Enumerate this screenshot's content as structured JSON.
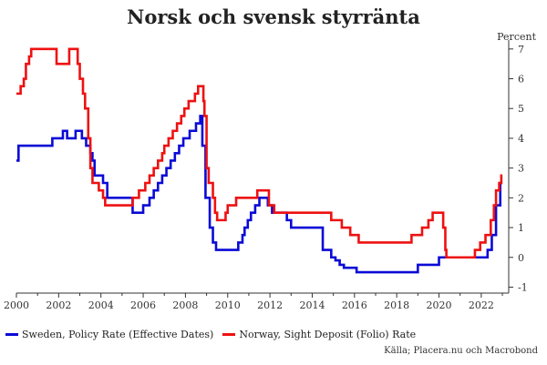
{
  "chart_data": {
    "type": "line",
    "title": "Norsk och svensk styrränta",
    "ylabel": "Percent",
    "xlabel": "",
    "source": "Källa; Placera.nu och Macrobond",
    "xlim": [
      2000,
      2023.3
    ],
    "ylim": [
      -1.2,
      7.3
    ],
    "x_ticks": [
      2000,
      2002,
      2004,
      2006,
      2008,
      2010,
      2012,
      2014,
      2016,
      2018,
      2020,
      2022
    ],
    "y_ticks": [
      -1,
      0,
      1,
      2,
      3,
      4,
      5,
      6,
      7
    ],
    "y_axis_position": "right",
    "grid": false,
    "legend_position": "bottom",
    "series": [
      {
        "name": "Sweden, Policy Rate (Effective Dates)",
        "color": "#0a0ad6",
        "step": true,
        "points": [
          [
            2000.0,
            3.25
          ],
          [
            2000.1,
            3.75
          ],
          [
            2001.7,
            4.0
          ],
          [
            2002.2,
            4.25
          ],
          [
            2002.4,
            4.0
          ],
          [
            2002.8,
            4.25
          ],
          [
            2002.9,
            4.25
          ],
          [
            2003.0,
            4.25
          ],
          [
            2003.1,
            4.0
          ],
          [
            2003.3,
            3.75
          ],
          [
            2003.5,
            3.5
          ],
          [
            2003.6,
            3.25
          ],
          [
            2003.7,
            2.75
          ],
          [
            2004.1,
            2.5
          ],
          [
            2004.3,
            2.0
          ],
          [
            2005.5,
            1.5
          ],
          [
            2006.0,
            1.75
          ],
          [
            2006.3,
            2.0
          ],
          [
            2006.5,
            2.25
          ],
          [
            2006.7,
            2.5
          ],
          [
            2006.9,
            2.75
          ],
          [
            2007.1,
            3.0
          ],
          [
            2007.3,
            3.25
          ],
          [
            2007.5,
            3.5
          ],
          [
            2007.7,
            3.75
          ],
          [
            2007.9,
            4.0
          ],
          [
            2008.2,
            4.25
          ],
          [
            2008.5,
            4.5
          ],
          [
            2008.7,
            4.75
          ],
          [
            2008.8,
            3.75
          ],
          [
            2008.95,
            2.0
          ],
          [
            2009.15,
            1.0
          ],
          [
            2009.3,
            0.5
          ],
          [
            2009.45,
            0.25
          ],
          [
            2010.5,
            0.5
          ],
          [
            2010.7,
            0.75
          ],
          [
            2010.8,
            1.0
          ],
          [
            2010.95,
            1.25
          ],
          [
            2011.1,
            1.5
          ],
          [
            2011.3,
            1.75
          ],
          [
            2011.5,
            2.0
          ],
          [
            2011.9,
            1.75
          ],
          [
            2012.1,
            1.5
          ],
          [
            2012.8,
            1.25
          ],
          [
            2013.0,
            1.0
          ],
          [
            2014.5,
            0.25
          ],
          [
            2014.9,
            0.0
          ],
          [
            2015.1,
            -0.1
          ],
          [
            2015.3,
            -0.25
          ],
          [
            2015.5,
            -0.35
          ],
          [
            2016.1,
            -0.5
          ],
          [
            2019.0,
            -0.25
          ],
          [
            2020.0,
            0.0
          ],
          [
            2022.3,
            0.25
          ],
          [
            2022.5,
            0.75
          ],
          [
            2022.7,
            1.75
          ],
          [
            2022.9,
            2.5
          ],
          [
            2023.0,
            2.5
          ]
        ]
      },
      {
        "name": "Norway, Sight Deposit (Folio) Rate",
        "color": "#ee1111",
        "step": true,
        "points": [
          [
            2000.0,
            5.5
          ],
          [
            2000.2,
            5.75
          ],
          [
            2000.35,
            6.0
          ],
          [
            2000.45,
            6.5
          ],
          [
            2000.6,
            6.75
          ],
          [
            2000.7,
            7.0
          ],
          [
            2001.9,
            6.5
          ],
          [
            2002.5,
            7.0
          ],
          [
            2002.9,
            6.5
          ],
          [
            2003.0,
            6.0
          ],
          [
            2003.15,
            5.5
          ],
          [
            2003.25,
            5.0
          ],
          [
            2003.4,
            4.0
          ],
          [
            2003.5,
            3.0
          ],
          [
            2003.6,
            2.5
          ],
          [
            2003.9,
            2.25
          ],
          [
            2004.1,
            2.0
          ],
          [
            2004.2,
            1.75
          ],
          [
            2005.5,
            2.0
          ],
          [
            2005.8,
            2.25
          ],
          [
            2006.1,
            2.5
          ],
          [
            2006.3,
            2.75
          ],
          [
            2006.5,
            3.0
          ],
          [
            2006.7,
            3.25
          ],
          [
            2006.9,
            3.5
          ],
          [
            2007.0,
            3.75
          ],
          [
            2007.2,
            4.0
          ],
          [
            2007.4,
            4.25
          ],
          [
            2007.6,
            4.5
          ],
          [
            2007.8,
            4.75
          ],
          [
            2007.95,
            5.0
          ],
          [
            2008.15,
            5.25
          ],
          [
            2008.45,
            5.5
          ],
          [
            2008.6,
            5.75
          ],
          [
            2008.85,
            5.25
          ],
          [
            2008.9,
            4.75
          ],
          [
            2009.0,
            3.0
          ],
          [
            2009.1,
            2.5
          ],
          [
            2009.3,
            2.0
          ],
          [
            2009.4,
            1.5
          ],
          [
            2009.5,
            1.25
          ],
          [
            2009.9,
            1.5
          ],
          [
            2010.0,
            1.75
          ],
          [
            2010.4,
            2.0
          ],
          [
            2011.4,
            2.25
          ],
          [
            2011.95,
            1.75
          ],
          [
            2012.2,
            1.5
          ],
          [
            2014.9,
            1.25
          ],
          [
            2015.4,
            1.0
          ],
          [
            2015.8,
            0.75
          ],
          [
            2016.2,
            0.5
          ],
          [
            2018.7,
            0.75
          ],
          [
            2019.2,
            1.0
          ],
          [
            2019.5,
            1.25
          ],
          [
            2019.7,
            1.5
          ],
          [
            2020.2,
            1.0
          ],
          [
            2020.3,
            0.25
          ],
          [
            2020.35,
            0.0
          ],
          [
            2021.7,
            0.25
          ],
          [
            2021.95,
            0.5
          ],
          [
            2022.2,
            0.75
          ],
          [
            2022.45,
            1.25
          ],
          [
            2022.6,
            1.75
          ],
          [
            2022.7,
            2.25
          ],
          [
            2022.85,
            2.5
          ],
          [
            2022.95,
            2.75
          ],
          [
            2023.0,
            2.75
          ]
        ]
      }
    ]
  }
}
